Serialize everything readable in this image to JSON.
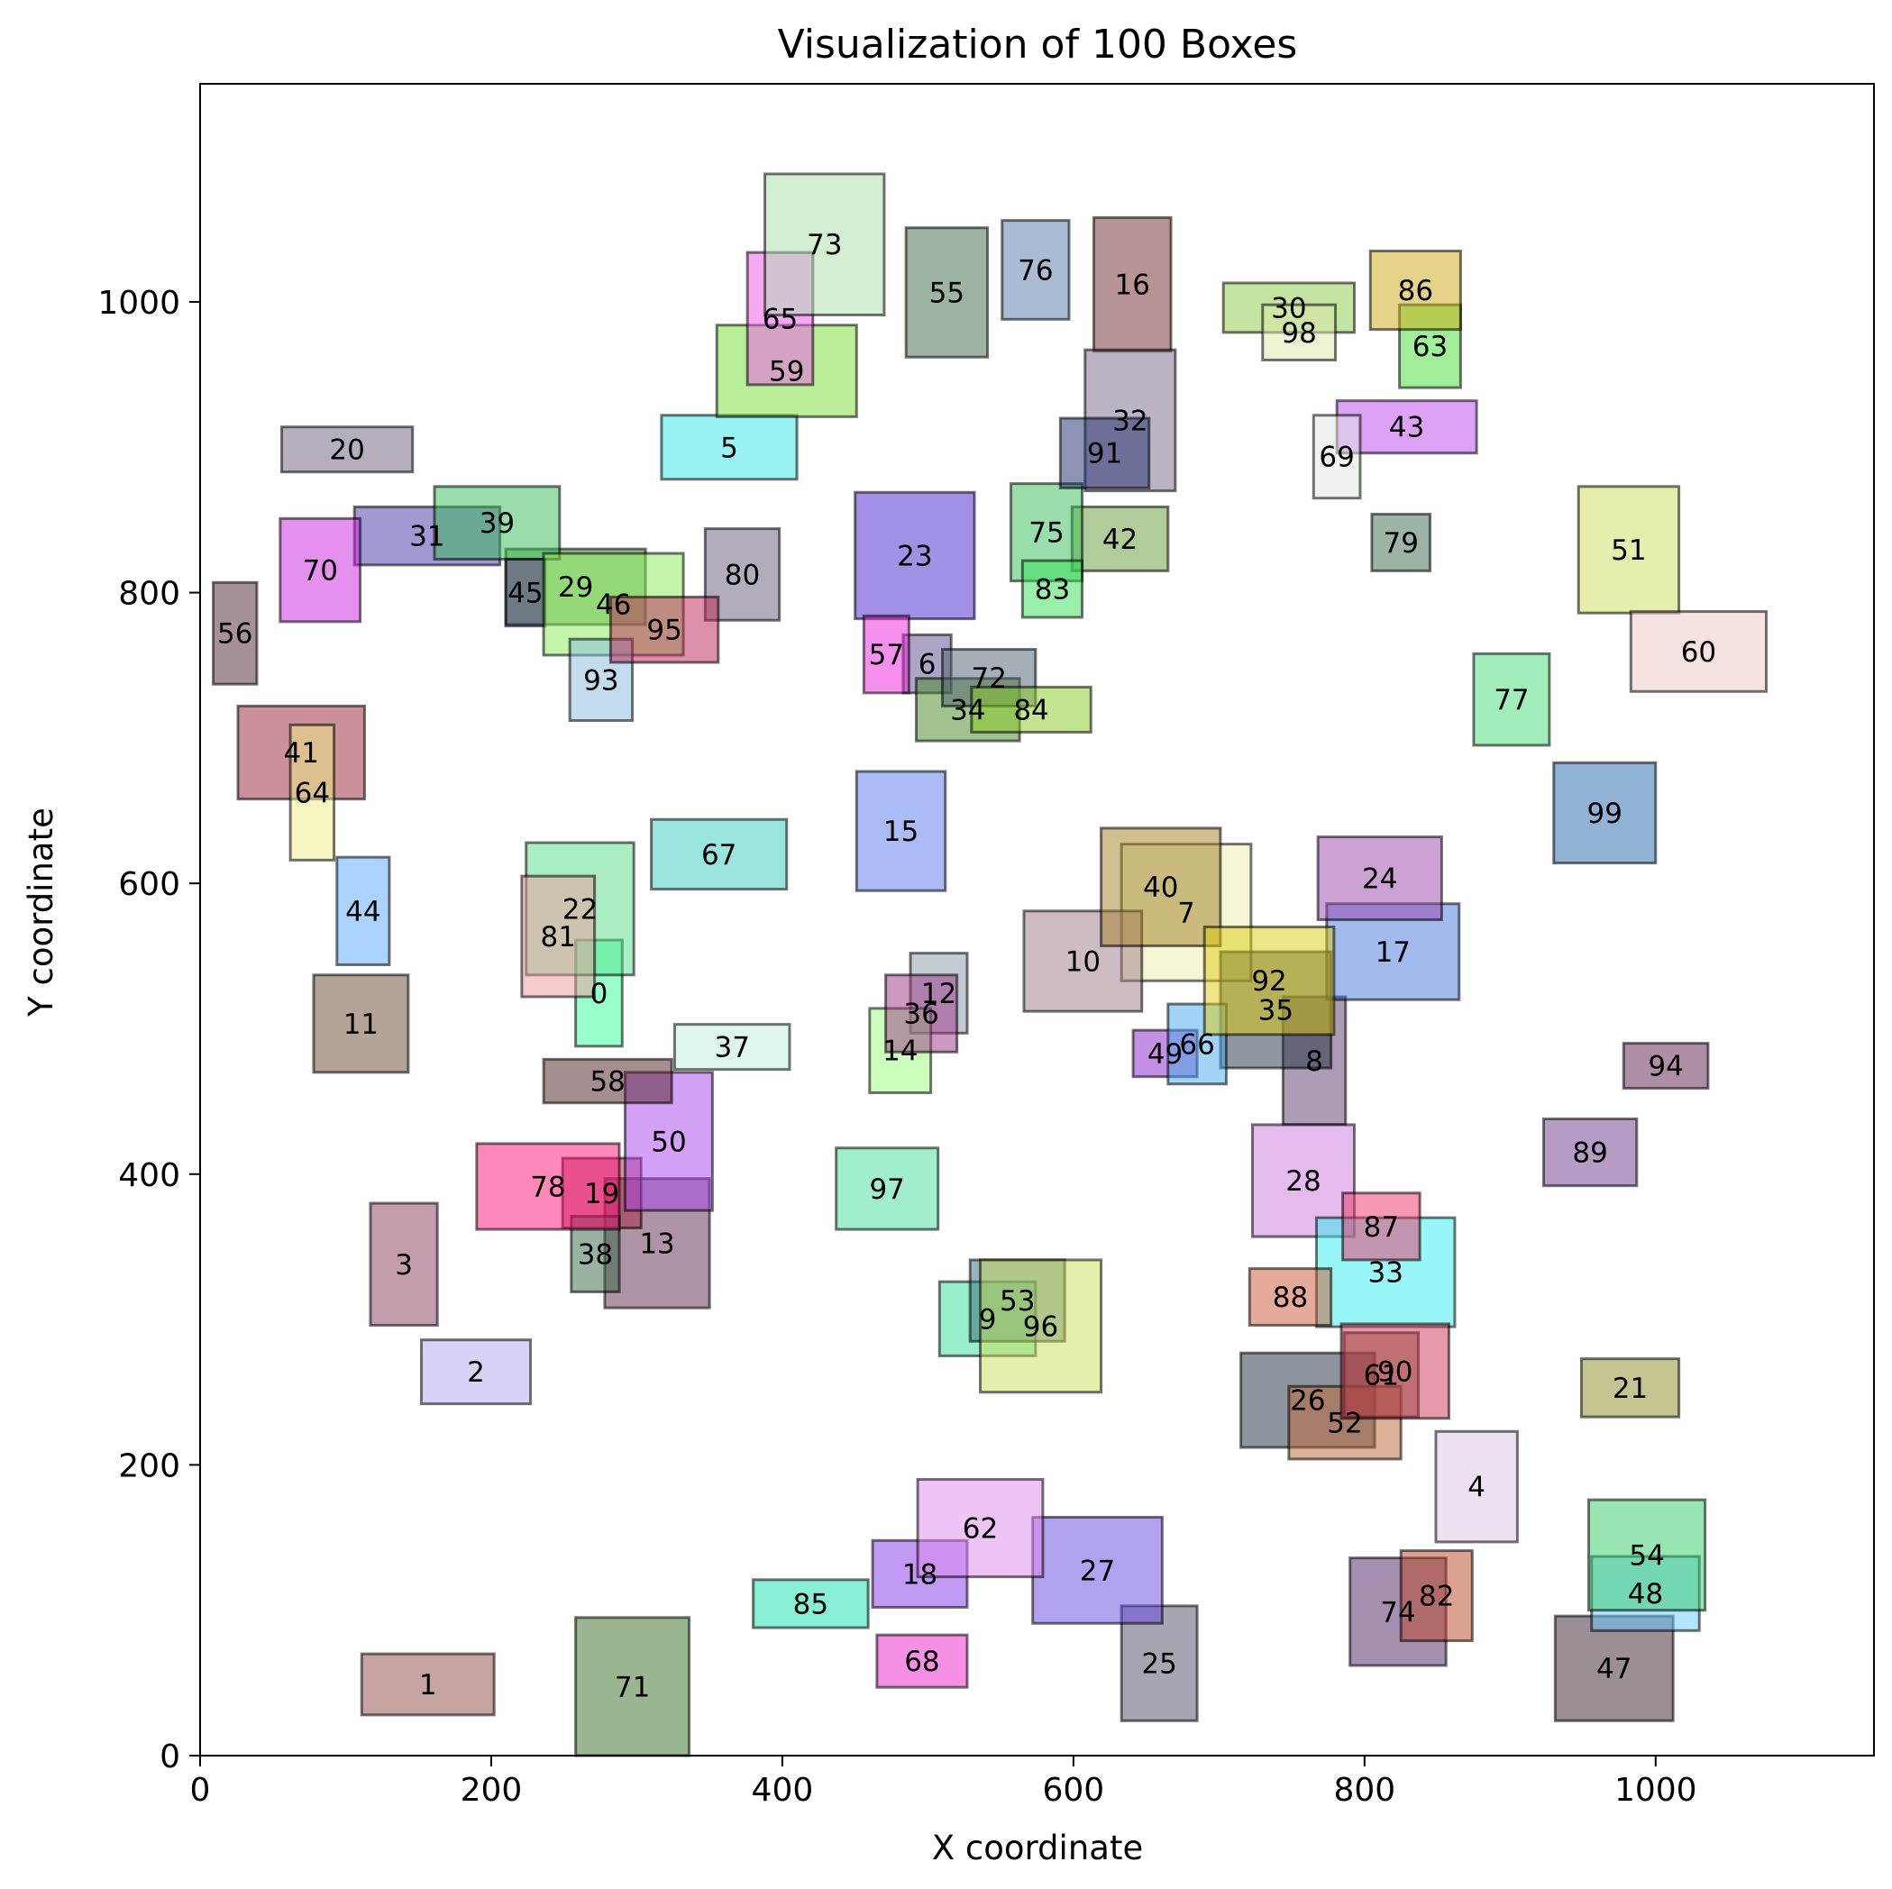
{
  "chart_data": {
    "type": "scatter",
    "title": "Visualization of 100 Boxes",
    "xlabel": "X coordinate",
    "ylabel": "Y coordinate",
    "xlim": [
      0,
      1150
    ],
    "ylim": [
      0,
      1150
    ],
    "xticks": [
      0,
      200,
      400,
      600,
      800,
      1000
    ],
    "yticks": [
      0,
      200,
      400,
      600,
      800,
      1000
    ],
    "grid": false,
    "legend": "none",
    "boxes": [
      {
        "label": "0",
        "x0": 258,
        "y0": 488,
        "x1": 290,
        "y1": 561,
        "color": "#33ff99"
      },
      {
        "label": "1",
        "x0": 111,
        "y0": 28,
        "x1": 202,
        "y1": 70,
        "color": "#8b4a45"
      },
      {
        "label": "2",
        "x0": 152,
        "y0": 242,
        "x1": 227,
        "y1": 286,
        "color": "#b3a6f0"
      },
      {
        "label": "3",
        "x0": 117,
        "y0": 296,
        "x1": 163,
        "y1": 380,
        "color": "#8b3a5e"
      },
      {
        "label": "4",
        "x0": 849,
        "y0": 147,
        "x1": 905,
        "y1": 223,
        "color": "#dcc6e6"
      },
      {
        "label": "5",
        "x0": 317,
        "y0": 878,
        "x1": 410,
        "y1": 922,
        "color": "#33e8e8"
      },
      {
        "label": "6",
        "x0": 483,
        "y0": 731,
        "x1": 516,
        "y1": 771,
        "color": "#5a4c8c"
      },
      {
        "label": "7",
        "x0": 633,
        "y0": 533,
        "x1": 722,
        "y1": 627,
        "color": "#eeeeaa"
      },
      {
        "label": "8",
        "x0": 744,
        "y0": 434,
        "x1": 787,
        "y1": 522,
        "color": "#5b3a6e"
      },
      {
        "label": "9",
        "x0": 508,
        "y0": 275,
        "x1": 574,
        "y1": 326,
        "color": "#33dd99"
      },
      {
        "label": "10",
        "x0": 566,
        "y0": 512,
        "x1": 647,
        "y1": 581,
        "color": "#9e7a8a"
      },
      {
        "label": "11",
        "x0": 78,
        "y0": 470,
        "x1": 143,
        "y1": 537,
        "color": "#6b4a2e"
      },
      {
        "label": "12",
        "x0": 488,
        "y0": 497,
        "x1": 527,
        "y1": 552,
        "color": "#8a9aa8"
      },
      {
        "label": "13",
        "x0": 278,
        "y0": 308,
        "x1": 350,
        "y1": 397,
        "color": "#5e2a4c"
      },
      {
        "label": "14",
        "x0": 460,
        "y0": 456,
        "x1": 502,
        "y1": 514,
        "color": "#99ff77"
      },
      {
        "label": "15",
        "x0": 451,
        "y0": 595,
        "x1": 512,
        "y1": 677,
        "color": "#5577ee"
      },
      {
        "label": "16",
        "x0": 614,
        "y0": 966,
        "x1": 667,
        "y1": 1058,
        "color": "#6e2a2e"
      },
      {
        "label": "17",
        "x0": 774,
        "y0": 520,
        "x1": 865,
        "y1": 586,
        "color": "#4477dd"
      },
      {
        "label": "18",
        "x0": 462,
        "y0": 102,
        "x1": 527,
        "y1": 148,
        "color": "#8833ee"
      },
      {
        "label": "19",
        "x0": 249,
        "y0": 363,
        "x1": 303,
        "y1": 411,
        "color": "#aa2244"
      },
      {
        "label": "20",
        "x0": 56,
        "y0": 883,
        "x1": 146,
        "y1": 914,
        "color": "#6e5e7c"
      },
      {
        "label": "21",
        "x0": 949,
        "y0": 233,
        "x1": 1016,
        "y1": 273,
        "color": "#8a8a22"
      },
      {
        "label": "22",
        "x0": 224,
        "y0": 537,
        "x1": 298,
        "y1": 628,
        "color": "#55dd88"
      },
      {
        "label": "23",
        "x0": 450,
        "y0": 782,
        "x1": 532,
        "y1": 869,
        "color": "#4422cc"
      },
      {
        "label": "24",
        "x0": 768,
        "y0": 575,
        "x1": 853,
        "y1": 632,
        "color": "#9944aa"
      },
      {
        "label": "25",
        "x0": 633,
        "y0": 24,
        "x1": 685,
        "y1": 103,
        "color": "#4e4e66"
      },
      {
        "label": "26",
        "x0": 715,
        "y0": 212,
        "x1": 807,
        "y1": 277,
        "color": "#1e2a3a"
      },
      {
        "label": "27",
        "x0": 572,
        "y0": 91,
        "x1": 661,
        "y1": 164,
        "color": "#6644dd"
      },
      {
        "label": "28",
        "x0": 723,
        "y0": 357,
        "x1": 793,
        "y1": 434,
        "color": "#cc77dd"
      },
      {
        "label": "29",
        "x0": 210,
        "y0": 778,
        "x1": 306,
        "y1": 830,
        "color": "#448a33"
      },
      {
        "label": "30",
        "x0": 703,
        "y0": 979,
        "x1": 793,
        "y1": 1013,
        "color": "#88cc44"
      },
      {
        "label": "31",
        "x0": 106,
        "y0": 819,
        "x1": 206,
        "y1": 859,
        "color": "#4433aa"
      },
      {
        "label": "32",
        "x0": 608,
        "y0": 870,
        "x1": 670,
        "y1": 967,
        "color": "#7a6a8a"
      },
      {
        "label": "33",
        "x0": 767,
        "y0": 295,
        "x1": 862,
        "y1": 370,
        "color": "#33eeee"
      },
      {
        "label": "34",
        "x0": 492,
        "y0": 698,
        "x1": 563,
        "y1": 741,
        "color": "#448822"
      },
      {
        "label": "35",
        "x0": 701,
        "y0": 473,
        "x1": 777,
        "y1": 553,
        "color": "#1e2e3e"
      },
      {
        "label": "36",
        "x0": 471,
        "y0": 484,
        "x1": 520,
        "y1": 537,
        "color": "#993388"
      },
      {
        "label": "37",
        "x0": 326,
        "y0": 472,
        "x1": 405,
        "y1": 503,
        "color": "#bbeedd"
      },
      {
        "label": "38",
        "x0": 255,
        "y0": 319,
        "x1": 288,
        "y1": 371,
        "color": "#336644"
      },
      {
        "label": "39",
        "x0": 161,
        "y0": 823,
        "x1": 247,
        "y1": 873,
        "color": "#33bb55"
      },
      {
        "label": "40",
        "x0": 619,
        "y0": 557,
        "x1": 701,
        "y1": 638,
        "color": "#9e7e22"
      },
      {
        "label": "41",
        "x0": 26,
        "y0": 658,
        "x1": 113,
        "y1": 722,
        "color": "#992233"
      },
      {
        "label": "42",
        "x0": 599,
        "y0": 815,
        "x1": 665,
        "y1": 859,
        "color": "#669933"
      },
      {
        "label": "43",
        "x0": 781,
        "y0": 896,
        "x1": 877,
        "y1": 932,
        "color": "#bb44ee"
      },
      {
        "label": "44",
        "x0": 94,
        "y0": 544,
        "x1": 130,
        "y1": 618,
        "color": "#55aaff"
      },
      {
        "label": "45",
        "x0": 210,
        "y0": 777,
        "x1": 237,
        "y1": 823,
        "color": "#3a2e6e"
      },
      {
        "label": "46",
        "x0": 236,
        "y0": 757,
        "x1": 332,
        "y1": 827,
        "color": "#88ee55"
      },
      {
        "label": "47",
        "x0": 931,
        "y0": 24,
        "x1": 1012,
        "y1": 96,
        "color": "#3a1e2e"
      },
      {
        "label": "48",
        "x0": 956,
        "y0": 86,
        "x1": 1030,
        "y1": 137,
        "color": "#66ccff"
      },
      {
        "label": "49",
        "x0": 641,
        "y0": 467,
        "x1": 685,
        "y1": 499,
        "color": "#8822cc"
      },
      {
        "label": "50",
        "x0": 292,
        "y0": 375,
        "x1": 352,
        "y1": 470,
        "color": "#aa44ee"
      },
      {
        "label": "51",
        "x0": 947,
        "y0": 786,
        "x1": 1016,
        "y1": 873,
        "color": "#ccdd55"
      },
      {
        "label": "52",
        "x0": 748,
        "y0": 204,
        "x1": 825,
        "y1": 254,
        "color": "#bb6633"
      },
      {
        "label": "53",
        "x0": 529,
        "y0": 285,
        "x1": 594,
        "y1": 341,
        "color": "#336677"
      },
      {
        "label": "54",
        "x0": 954,
        "y0": 100,
        "x1": 1034,
        "y1": 176,
        "color": "#33cc66"
      },
      {
        "label": "55",
        "x0": 485,
        "y0": 962,
        "x1": 541,
        "y1": 1051,
        "color": "#3a6a44"
      },
      {
        "label": "56",
        "x0": 9,
        "y0": 737,
        "x1": 39,
        "y1": 807,
        "color": "#4e2233"
      },
      {
        "label": "57",
        "x0": 456,
        "y0": 731,
        "x1": 487,
        "y1": 784,
        "color": "#ee22dd"
      },
      {
        "label": "58",
        "x0": 236,
        "y0": 449,
        "x1": 324,
        "y1": 479,
        "color": "#4e1e22"
      },
      {
        "label": "59",
        "x0": 355,
        "y0": 921,
        "x1": 451,
        "y1": 984,
        "color": "#77dd33"
      },
      {
        "label": "60",
        "x0": 983,
        "y0": 732,
        "x1": 1076,
        "y1": 787,
        "color": "#f0c6c6"
      },
      {
        "label": "61",
        "x0": 786,
        "y0": 233,
        "x1": 837,
        "y1": 291,
        "color": "#6a5a22"
      },
      {
        "label": "62",
        "x0": 493,
        "y0": 123,
        "x1": 579,
        "y1": 190,
        "color": "#dd88ee"
      },
      {
        "label": "63",
        "x0": 824,
        "y0": 941,
        "x1": 866,
        "y1": 998,
        "color": "#44dd33"
      },
      {
        "label": "64",
        "x0": 62,
        "y0": 616,
        "x1": 92,
        "y1": 709,
        "color": "#eeee88"
      },
      {
        "label": "65",
        "x0": 376,
        "y0": 943,
        "x1": 421,
        "y1": 1034,
        "color": "#ee55ee"
      },
      {
        "label": "66",
        "x0": 665,
        "y0": 462,
        "x1": 705,
        "y1": 517,
        "color": "#44aaee"
      },
      {
        "label": "67",
        "x0": 310,
        "y0": 596,
        "x1": 403,
        "y1": 644,
        "color": "#33ccbb"
      },
      {
        "label": "68",
        "x0": 465,
        "y0": 47,
        "x1": 527,
        "y1": 83,
        "color": "#ee22cc"
      },
      {
        "label": "69",
        "x0": 765,
        "y0": 865,
        "x1": 797,
        "y1": 922,
        "color": "#dde8dd"
      },
      {
        "label": "70",
        "x0": 55,
        "y0": 780,
        "x1": 110,
        "y1": 851,
        "color": "#cc22dd"
      },
      {
        "label": "71",
        "x0": 258,
        "y0": 0,
        "x1": 336,
        "y1": 95,
        "color": "#336e22"
      },
      {
        "label": "72",
        "x0": 510,
        "y0": 722,
        "x1": 574,
        "y1": 761,
        "color": "#4e5e6e"
      },
      {
        "label": "73",
        "x0": 388,
        "y0": 991,
        "x1": 470,
        "y1": 1088,
        "color": "#aaddaa"
      },
      {
        "label": "74",
        "x0": 790,
        "y0": 62,
        "x1": 856,
        "y1": 136,
        "color": "#4e2266"
      },
      {
        "label": "75",
        "x0": 557,
        "y0": 808,
        "x1": 606,
        "y1": 875,
        "color": "#33bb55"
      },
      {
        "label": "76",
        "x0": 551,
        "y0": 988,
        "x1": 597,
        "y1": 1056,
        "color": "#5577aa"
      },
      {
        "label": "77",
        "x0": 875,
        "y0": 695,
        "x1": 927,
        "y1": 758,
        "color": "#44dd77"
      },
      {
        "label": "78",
        "x0": 190,
        "y0": 362,
        "x1": 288,
        "y1": 421,
        "color": "#ff1177"
      },
      {
        "label": "79",
        "x0": 805,
        "y0": 815,
        "x1": 845,
        "y1": 854,
        "color": "#3a6a4e"
      },
      {
        "label": "80",
        "x0": 347,
        "y0": 781,
        "x1": 398,
        "y1": 844,
        "color": "#6a5a7a"
      },
      {
        "label": "81",
        "x0": 221,
        "y0": 522,
        "x1": 271,
        "y1": 605,
        "color": "#ee9999"
      },
      {
        "label": "82",
        "x0": 825,
        "y0": 79,
        "x1": 874,
        "y1": 141,
        "color": "#bb4422"
      },
      {
        "label": "83",
        "x0": 565,
        "y0": 783,
        "x1": 606,
        "y1": 822,
        "color": "#33dd55"
      },
      {
        "label": "84",
        "x0": 530,
        "y0": 704,
        "x1": 612,
        "y1": 735,
        "color": "#88cc22"
      },
      {
        "label": "85",
        "x0": 380,
        "y0": 88,
        "x1": 459,
        "y1": 121,
        "color": "#11ddaa"
      },
      {
        "label": "86",
        "x0": 804,
        "y0": 981,
        "x1": 866,
        "y1": 1035,
        "color": "#ccaa11"
      },
      {
        "label": "87",
        "x0": 785,
        "y0": 341,
        "x1": 838,
        "y1": 387,
        "color": "#ee3366"
      },
      {
        "label": "88",
        "x0": 721,
        "y0": 296,
        "x1": 777,
        "y1": 335,
        "color": "#cc5533"
      },
      {
        "label": "89",
        "x0": 923,
        "y0": 392,
        "x1": 987,
        "y1": 438,
        "color": "#6a3a8a"
      },
      {
        "label": "90",
        "x0": 784,
        "y0": 232,
        "x1": 858,
        "y1": 297,
        "color": "#cc3355"
      },
      {
        "label": "91",
        "x0": 591,
        "y0": 872,
        "x1": 652,
        "y1": 920,
        "color": "#1e2a6e"
      },
      {
        "label": "92",
        "x0": 690,
        "y0": 496,
        "x1": 779,
        "y1": 570,
        "color": "#ddcc11"
      },
      {
        "label": "93",
        "x0": 254,
        "y0": 712,
        "x1": 297,
        "y1": 768,
        "color": "#88bbdd"
      },
      {
        "label": "94",
        "x0": 978,
        "y0": 459,
        "x1": 1036,
        "y1": 490,
        "color": "#5e1e4e"
      },
      {
        "label": "95",
        "x0": 282,
        "y0": 752,
        "x1": 356,
        "y1": 797,
        "color": "#bb2255"
      },
      {
        "label": "96",
        "x0": 536,
        "y0": 250,
        "x1": 619,
        "y1": 341,
        "color": "#ccdd55"
      },
      {
        "label": "97",
        "x0": 437,
        "y0": 362,
        "x1": 507,
        "y1": 418,
        "color": "#44dd99"
      },
      {
        "label": "98",
        "x0": 730,
        "y0": 960,
        "x1": 780,
        "y1": 998,
        "color": "#dde8aa"
      },
      {
        "label": "99",
        "x0": 930,
        "y0": 614,
        "x1": 1000,
        "y1": 683,
        "color": "#2266aa"
      }
    ]
  }
}
